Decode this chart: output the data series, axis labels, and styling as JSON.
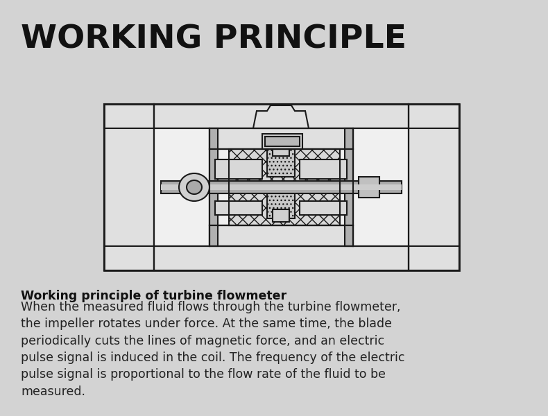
{
  "bg_color": "#d3d3d3",
  "title": "WORKING PRINCIPLE",
  "title_fontsize": 34,
  "title_fontweight": "bold",
  "bold_caption": "Working principle of turbine flowmeter",
  "caption": "When the measured fluid flows through the turbine flowmeter,\nthe impeller rotates under force. At the same time, the blade\nperiodically cuts the lines of magnetic force, and an electric\npulse signal is induced in the coil. The frequency of the electric\npulse signal is proportional to the flow rate of the fluid to be\nmeasured.",
  "caption_fontsize": 12.5,
  "line_color": "#1a1a1a",
  "fill_bg": "#d3d3d3",
  "fill_white": "#f2f2f2",
  "fill_hatch_bg": "#e0e0e0",
  "fill_inner": "#f5f5f5",
  "fill_gray": "#c0c0c0",
  "fill_dark": "#888888"
}
